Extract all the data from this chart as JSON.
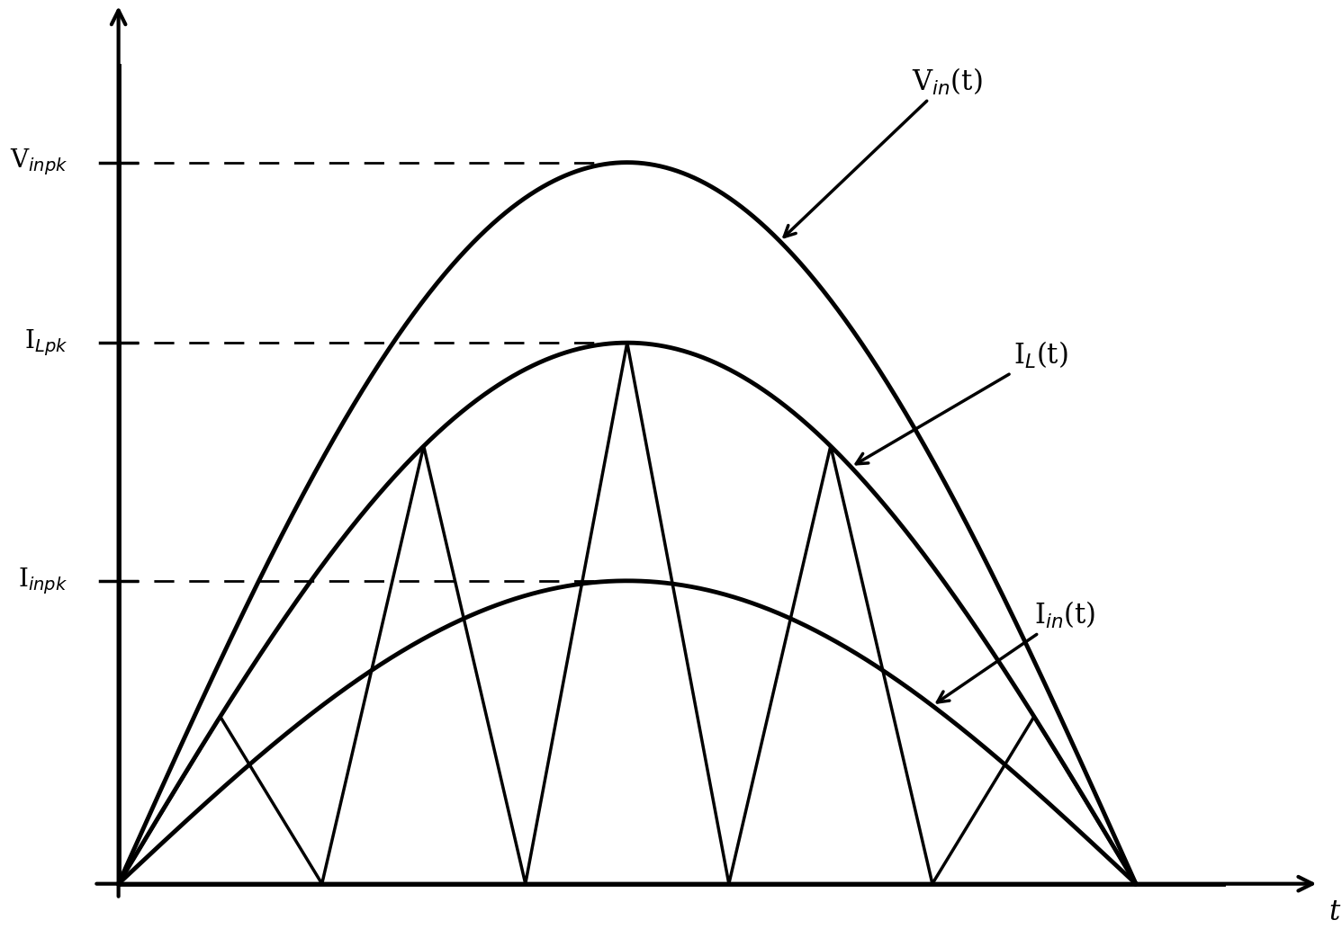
{
  "background_color": "#ffffff",
  "line_color": "#000000",
  "Vinpk": 1.0,
  "ILpk": 0.75,
  "Iinpk": 0.42,
  "n_cycles": 5,
  "xlim": [
    -0.08,
    1.18
  ],
  "ylim": [
    -0.07,
    1.22
  ],
  "label_Vin": "V$_{in}$(t)",
  "label_IL": "I$_L$(t)",
  "label_Iin": "I$_{in}$(t)",
  "label_Vinpk": "V$_{inpk}$",
  "label_ILpk": "I$_{Lpk}$",
  "label_Iinpk": "I$_{inpk}$",
  "label_t": "t",
  "fontsize_annot": 22,
  "fontsize_tick": 20,
  "lw_main": 3.5,
  "lw_tri": 2.5
}
